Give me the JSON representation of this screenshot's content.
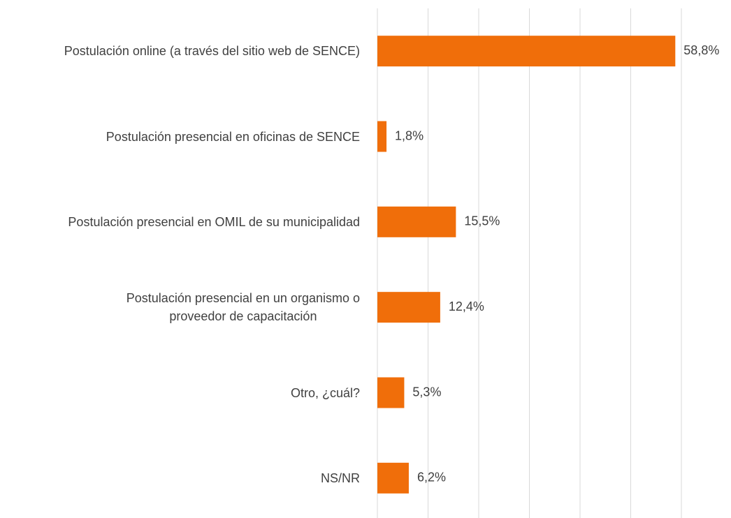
{
  "chart_data": {
    "type": "bar",
    "orientation": "horizontal",
    "categories": [
      "Postulación online (a través del sitio web de SENCE)",
      "Postulación presencial en oficinas de SENCE",
      "Postulación presencial en OMIL de su municipalidad",
      "Postulación presencial en un organismo o\nproveedor de capacitación",
      "Otro, ¿cuál?",
      "NS/NR"
    ],
    "values": [
      58.8,
      1.8,
      15.5,
      12.4,
      5.3,
      6.2
    ],
    "value_labels": [
      "58,8%",
      "1,8%",
      "15,5%",
      "12,4%",
      "5,3%",
      "6,2%"
    ],
    "color": "#f06e0a",
    "xlim": [
      0,
      60
    ],
    "xticks": [
      0,
      10,
      20,
      30,
      40,
      50,
      60
    ],
    "grid": true
  }
}
